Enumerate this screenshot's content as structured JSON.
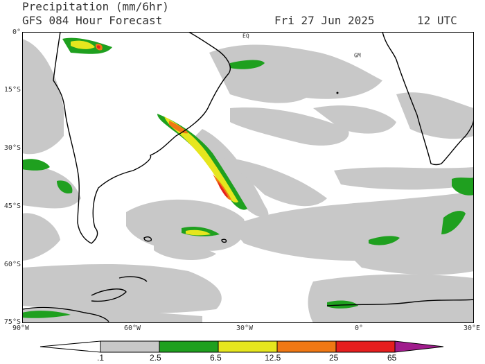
{
  "header": {
    "title": "Precipitation (mm/6hr)",
    "model_line": "GFS 084 Hour Forecast",
    "date": "Fri 27 Jun 2025",
    "time": "12 UTC"
  },
  "map": {
    "projection": "equirectangular",
    "lon_range": [
      -90,
      30
    ],
    "lat_range": [
      -75,
      0
    ],
    "lat_labels": [
      "0°",
      "15°S",
      "30°S",
      "45°S",
      "60°S",
      "75°S"
    ],
    "lon_labels": [
      "90°W",
      "60°W",
      "30°W",
      "0°",
      "30°E"
    ],
    "place_labels": [
      "EQ",
      "GM"
    ],
    "colors": {
      "land": "#ffffff",
      "ocean_bg": "#ffffff",
      "light": "#c8c8c8",
      "green": "#1fa01f",
      "yellow": "#e6e61e",
      "orange": "#f07814",
      "red": "#e61e1e",
      "coast": "#000000"
    }
  },
  "colorbar": {
    "labels": [
      ".1",
      "2.5",
      "6.5",
      "12.5",
      "25",
      "65"
    ],
    "colors": [
      "#ffffff",
      "#c8c8c8",
      "#1fa01f",
      "#e6e61e",
      "#f07814",
      "#e61e1e",
      "#a01c8c"
    ]
  }
}
